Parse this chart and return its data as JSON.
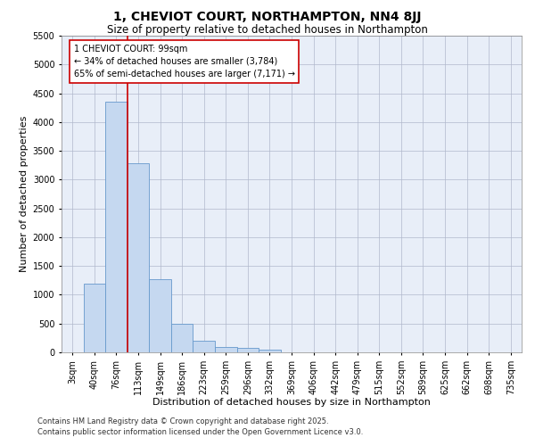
{
  "title": "1, CHEVIOT COURT, NORTHAMPTON, NN4 8JJ",
  "subtitle": "Size of property relative to detached houses in Northampton",
  "xlabel": "Distribution of detached houses by size in Northampton",
  "ylabel": "Number of detached properties",
  "categories": [
    "3sqm",
    "40sqm",
    "76sqm",
    "113sqm",
    "149sqm",
    "186sqm",
    "223sqm",
    "259sqm",
    "296sqm",
    "332sqm",
    "369sqm",
    "406sqm",
    "442sqm",
    "479sqm",
    "515sqm",
    "552sqm",
    "589sqm",
    "625sqm",
    "662sqm",
    "698sqm",
    "735sqm"
  ],
  "values": [
    0,
    1200,
    4350,
    3280,
    1270,
    500,
    200,
    100,
    75,
    50,
    0,
    0,
    0,
    0,
    0,
    0,
    0,
    0,
    0,
    0,
    0
  ],
  "bar_color": "#c5d8f0",
  "bar_edge_color": "#6699cc",
  "vline_x_index": 2.5,
  "vline_color": "#cc0000",
  "annotation_text": "1 CHEVIOT COURT: 99sqm\n← 34% of detached houses are smaller (3,784)\n65% of semi-detached houses are larger (7,171) →",
  "annotation_box_color": "#ffffff",
  "annotation_box_edge": "#cc0000",
  "ylim": [
    0,
    5500
  ],
  "yticks": [
    0,
    500,
    1000,
    1500,
    2000,
    2500,
    3000,
    3500,
    4000,
    4500,
    5000,
    5500
  ],
  "footer1": "Contains HM Land Registry data © Crown copyright and database right 2025.",
  "footer2": "Contains public sector information licensed under the Open Government Licence v3.0.",
  "bg_color": "#e8eef8",
  "grid_color": "#b0b8cc",
  "title_fontsize": 10,
  "subtitle_fontsize": 8.5,
  "axis_label_fontsize": 8,
  "tick_fontsize": 7,
  "annotation_fontsize": 7,
  "footer_fontsize": 6
}
